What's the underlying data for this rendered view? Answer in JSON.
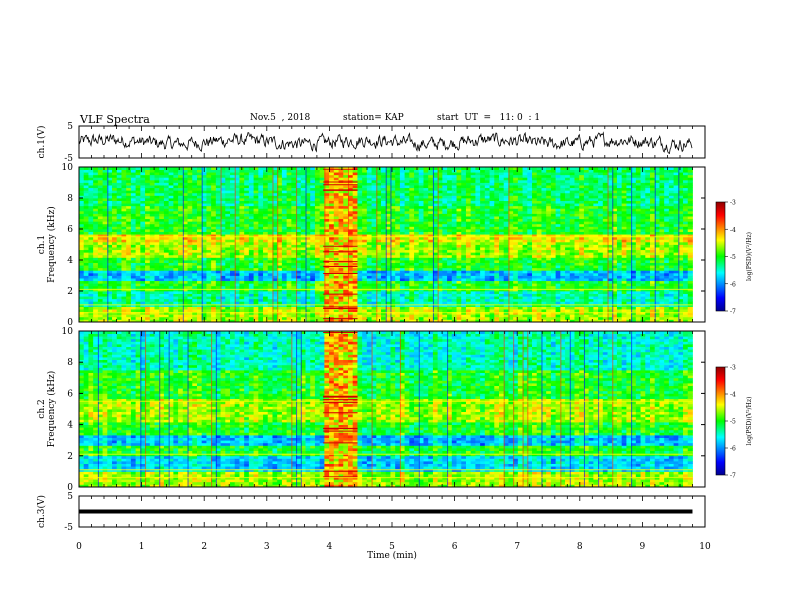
{
  "header": {
    "title": "VLF Spectra",
    "date": "Nov.5  , 2018",
    "station": "station= KAP",
    "start_ut": "start  UT  =   11: 0  : 1"
  },
  "colorbar_label": "log(PSD)(V²/Hz)",
  "chart_data": [
    {
      "type": "line",
      "panel": "ch1-waveform",
      "ylabel": "ch.1(V)",
      "xlim": [
        0,
        10
      ],
      "ylim": [
        -5,
        5
      ],
      "yticks": [
        "5",
        "-5"
      ],
      "note_series": "noisy waveform roughly between -3 and 3 V, data ends near 9.8 min"
    },
    {
      "type": "heatmap",
      "panel": "ch1-spectrogram",
      "ylabel": "ch.1\nFrequency (kHz)",
      "xlim": [
        0,
        10
      ],
      "ylim": [
        0,
        10
      ],
      "yticks": [
        "0",
        "2",
        "4",
        "6",
        "8",
        "10"
      ],
      "colorbar": {
        "range": [
          -7,
          -3
        ],
        "ticks": [
          "-3",
          "-4",
          "-5",
          "-6",
          "-7"
        ],
        "label": "log(PSD)(V²/Hz)"
      }
    },
    {
      "type": "heatmap",
      "panel": "ch2-spectrogram",
      "ylabel": "ch.2\nFrequency (kHz)",
      "xlim": [
        0,
        10
      ],
      "ylim": [
        0,
        10
      ],
      "yticks": [
        "0",
        "2",
        "4",
        "6",
        "8",
        "10"
      ],
      "colorbar": {
        "range": [
          -7,
          -3
        ],
        "ticks": [
          "-3",
          "-4",
          "-5",
          "-6",
          "-7"
        ],
        "label": "log(PSD)(V²/Hz)"
      }
    },
    {
      "type": "line",
      "panel": "ch3-waveform",
      "ylabel": "ch.3(V)",
      "xlim": [
        0,
        10
      ],
      "ylim": [
        -5,
        5
      ],
      "yticks": [
        "5",
        "-5"
      ],
      "x": [
        0,
        9.8
      ],
      "y": [
        0,
        0
      ]
    }
  ],
  "xaxis": {
    "label": "Time  (min)",
    "ticks": [
      "0",
      "1",
      "2",
      "3",
      "4",
      "5",
      "6",
      "7",
      "8",
      "9",
      "10"
    ]
  },
  "colors": {
    "background": "#ffffff",
    "axis": "#000000",
    "colormap": [
      "#00008f",
      "#0000ff",
      "#00ffff",
      "#00ff00",
      "#ffff00",
      "#ff0000",
      "#8f0000"
    ]
  }
}
